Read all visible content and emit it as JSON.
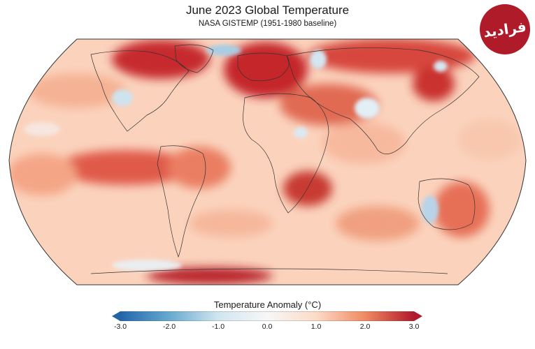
{
  "title": "June 2023 Global Temperature",
  "subtitle": "NASA GISTEMP (1951-1980 baseline)",
  "logo_text": "فرادید",
  "legend": {
    "title": "Temperature Anomaly (°C)",
    "ticks": [
      "-3.0",
      "-2.0",
      "-1.0",
      "0.0",
      "1.0",
      "2.0",
      "3.0"
    ],
    "colors": [
      "#2166ac",
      "#67a9cf",
      "#d1e5f0",
      "#f7f7f7",
      "#fddbc7",
      "#ef8a62",
      "#b2182b"
    ]
  },
  "map": {
    "projection": "robinson",
    "ocean_base_color": "#f8c8b0",
    "coastline_color": "#333333"
  }
}
